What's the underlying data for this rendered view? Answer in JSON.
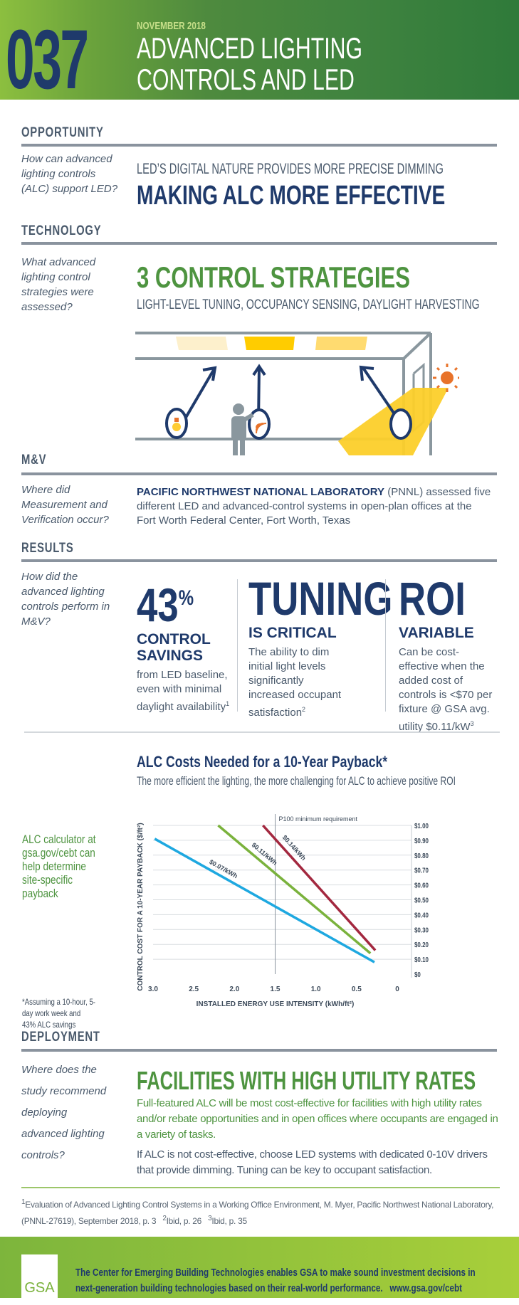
{
  "header": {
    "number": "037",
    "date": "NOVEMBER 2018",
    "title_line1": "ADVANCED LIGHTING",
    "title_line2": "CONTROLS AND LED"
  },
  "opportunity": {
    "label": "OPPORTUNITY",
    "question": "How can advanced lighting controls (ALC) support LED?",
    "subline": "LED’S DIGITAL NATURE PROVIDES MORE PRECISE DIMMING",
    "headline": "MAKING ALC MORE EFFECTIVE"
  },
  "technology": {
    "label": "TECHNOLOGY",
    "question": "What advanced lighting control strategies were assessed?",
    "headline": "3 CONTROL STRATEGIES",
    "subline": "LIGHT-LEVEL TUNING, OCCUPANCY SENSING, DAYLIGHT HARVESTING"
  },
  "mv": {
    "label": "M&V",
    "question": "Where did Measurement and Verification occur?",
    "org": "PACIFIC NORTHWEST NATIONAL LABORATORY",
    "text": " (PNNL) assessed five different LED and advanced-control systems in open-plan offices at the Fort Worth Federal Center, Fort Worth, Texas"
  },
  "results": {
    "label": "RESULTS",
    "question": "How did the advanced lighting controls perform in M&V?",
    "cols": [
      {
        "big": "43",
        "sup": "%",
        "sub": "CONTROL SAVINGS",
        "text": "from LED baseline, even with minimal daylight availability",
        "note": "1"
      },
      {
        "big": "TUNING",
        "sup": "",
        "sub": "IS CRITICAL",
        "text": "The ability to dim initial light levels significantly increased occupant satisfaction",
        "note": "2"
      },
      {
        "big": "ROI",
        "sup": "",
        "sub": "VARIABLE",
        "text": "Can be cost-effective when the added cost of controls is <$70 per fixture @ GSA avg. utility $0.11/kW",
        "note": "3"
      }
    ]
  },
  "chart_side": {
    "calculator": "ALC calculator at gsa.gov/cebt can help determine site-specific payback",
    "assumption": "*Assuming a 10-hour, 5-day work week and 43% ALC savings"
  },
  "chart_data": {
    "type": "line",
    "title": "ALC Costs Needed for a 10-Year Payback*",
    "subtitle": "The more efficient the lighting, the more challenging for ALC to achieve positive ROI",
    "xlabel": "INSTALLED ENERGY USE INTENSITY (kWh/ft²)",
    "ylabel": "CONTROL COST FOR A 10-YEAR PAYBACK ($/ft²)",
    "xlim": [
      3.0,
      0
    ],
    "ylim": [
      0,
      1.0
    ],
    "x_ticks": [
      "3.0",
      "2.5",
      "2.0",
      "1.5",
      "1.0",
      "0.5",
      "0"
    ],
    "y_ticks": [
      "$0",
      "$0.10",
      "$0.20",
      "$0.30",
      "$0.40",
      "$0.50",
      "$0.60",
      "$0.70",
      "$0.80",
      "$0.90",
      "$1.00"
    ],
    "grid": true,
    "y_axis_side": "right",
    "reference_line": {
      "x": 1.5,
      "label": "P100 minimum requirement"
    },
    "series": [
      {
        "name": "$0.07/kWh",
        "color": "#1ea8e0",
        "x": [
          2.98,
          0.28
        ],
        "y": [
          0.91,
          0.08
        ]
      },
      {
        "name": "$0.11/kWh",
        "color": "#7ab23c",
        "x": [
          2.2,
          0.33
        ],
        "y": [
          1.0,
          0.14
        ]
      },
      {
        "name": "$0.14/kWh",
        "color": "#a3283f",
        "x": [
          1.65,
          0.27
        ],
        "y": [
          1.0,
          0.16
        ]
      }
    ]
  },
  "deployment": {
    "label": "DEPLOYMENT",
    "question": "Where does the study recommend deploying advanced lighting controls?",
    "headline": "FACILITIES WITH HIGH UTILITY RATES",
    "para1": "Full-featured ALC will be most cost-effective for facilities with high utility rates and/or rebate opportunities and in open offices where occupants are engaged in a variety of tasks.",
    "para2": "If ALC is not cost-effective, choose LED systems with dedicated 0-10V drivers that provide dimming. Tuning can be key to occupant satisfaction."
  },
  "footnotes": {
    "n1": "1",
    "t1": "Evaluation of Advanced Lighting Control Systems in a Working Office Environment, M. Myer, Pacific Northwest National Laboratory, (PNNL-27619), September 2018, p. 3",
    "n2": "2",
    "t2": "Ibid, p. 26",
    "n3": "3",
    "t3": "Ibid, p. 35"
  },
  "footer": {
    "logo": "GSA",
    "text": "The Center for Emerging Building Technologies enables GSA to make sound investment decisions in next-generation building technologies based on their real-world performance.",
    "link": "www.gsa.gov/cebt"
  },
  "colors": {
    "navy": "#1f3a6b",
    "green": "#4e9440",
    "gray": "#8a939e",
    "yellow": "#ffcc00",
    "sun": "#e8732a"
  }
}
